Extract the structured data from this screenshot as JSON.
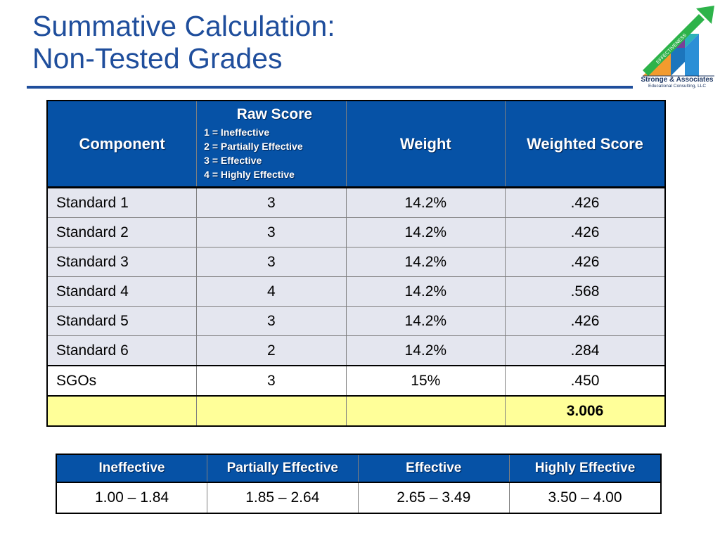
{
  "slide": {
    "title_line1": "Summative Calculation:",
    "title_line2": "Non-Tested Grades"
  },
  "logo": {
    "ribbon_text": "EFFECTIVENESS",
    "name": "Stronge & Associates",
    "subtitle": "Educational Consulting, LLC",
    "colors": {
      "green": "#2db34a",
      "orange": "#f39b2e",
      "purple": "#7b3f98",
      "blue": "#1c75bc",
      "teal": "#2bb3b8"
    }
  },
  "main_table": {
    "headers": {
      "component": "Component",
      "raw_score": "Raw Score",
      "raw_score_scale": [
        "1 = Ineffective",
        "2 = Partially Effective",
        "3 = Effective",
        "4 = Highly Effective"
      ],
      "weight": "Weight",
      "weighted_score": "Weighted Score"
    },
    "rows": [
      {
        "component": "Standard 1",
        "raw": "3",
        "weight": "14.2%",
        "weighted": ".426"
      },
      {
        "component": "Standard 2",
        "raw": "3",
        "weight": "14.2%",
        "weighted": ".426"
      },
      {
        "component": "Standard 3",
        "raw": "3",
        "weight": "14.2%",
        "weighted": ".426"
      },
      {
        "component": "Standard 4",
        "raw": "4",
        "weight": "14.2%",
        "weighted": ".568"
      },
      {
        "component": "Standard 5",
        "raw": "3",
        "weight": "14.2%",
        "weighted": ".426"
      },
      {
        "component": "Standard 6",
        "raw": "2",
        "weight": "14.2%",
        "weighted": ".284"
      },
      {
        "component": "SGOs",
        "raw": "3",
        "weight": "15%",
        "weighted": ".450"
      }
    ],
    "total": {
      "component": "",
      "raw": "",
      "weight": "",
      "weighted": "3.006"
    },
    "colors": {
      "header_bg": "#0652a6",
      "row_bg": "#e4e6ef",
      "total_bg": "#ffff99"
    }
  },
  "scale_table": {
    "headers": [
      "Ineffective",
      "Partially Effective",
      "Effective",
      "Highly Effective"
    ],
    "ranges": [
      "1.00 – 1.84",
      "1.85 – 2.64",
      "2.65 – 3.49",
      "3.50 – 4.00"
    ]
  }
}
